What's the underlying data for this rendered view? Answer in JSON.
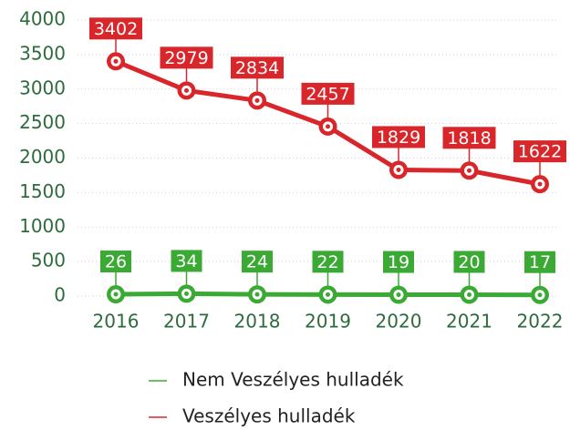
{
  "chart_data": {
    "type": "line",
    "categories": [
      "2016",
      "2017",
      "2018",
      "2019",
      "2020",
      "2021",
      "2022"
    ],
    "series": [
      {
        "name": "Nem Veszélyes hulladék",
        "color": "#3aaa35",
        "values": [
          26,
          34,
          24,
          22,
          19,
          20,
          17
        ]
      },
      {
        "name": "Veszélyes hulladék",
        "color": "#d9262b",
        "values": [
          3402,
          2979,
          2834,
          2457,
          1829,
          1818,
          1622
        ]
      }
    ],
    "ylim": [
      0,
      4000
    ],
    "yticks": [
      0,
      500,
      1000,
      1500,
      2000,
      2500,
      3000,
      3500,
      4000
    ],
    "grid": true,
    "legend": "bottom"
  }
}
